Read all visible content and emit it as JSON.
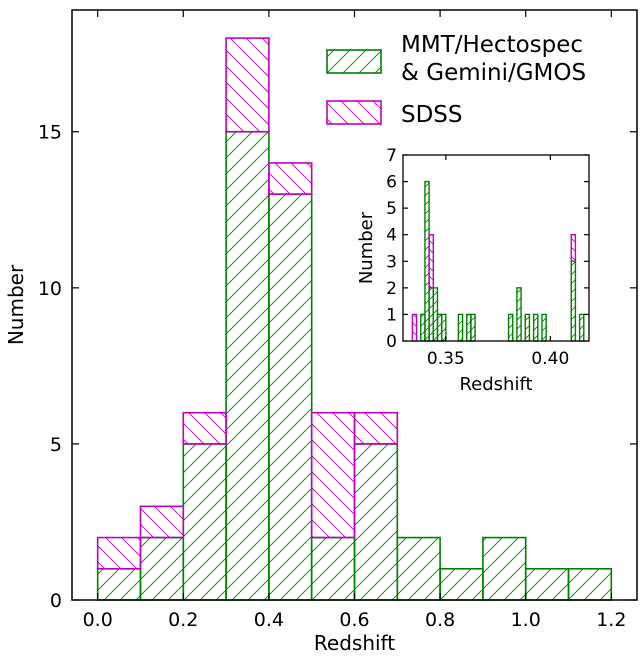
{
  "chart_data": [
    {
      "type": "bar",
      "stacked": true,
      "bin_edges": [
        0.0,
        0.1,
        0.2,
        0.3,
        0.4,
        0.5,
        0.6,
        0.7,
        0.8,
        0.9,
        1.0,
        1.1,
        1.2
      ],
      "series": [
        {
          "name": "MMT/Hectospec\n& Gemini/GMOS",
          "label_lines": [
            "MMT/Hectospec",
            "& Gemini/GMOS"
          ],
          "color": "#008000",
          "hatch": "forward-diagonal",
          "values": [
            1,
            2,
            5,
            15,
            13,
            2,
            5,
            2,
            1,
            2,
            1,
            1
          ]
        },
        {
          "name": "SDSS",
          "label_lines": [
            "SDSS"
          ],
          "color": "#bf00bf",
          "hatch": "back-diagonal",
          "values": [
            1,
            1,
            1,
            3,
            1,
            4,
            1,
            0,
            0,
            0,
            0,
            0
          ]
        }
      ],
      "xlabel": "Redshift",
      "ylabel": "Number",
      "xlim": [
        -0.06,
        1.26
      ],
      "ylim": [
        0,
        18.9
      ],
      "xticks": [
        0.0,
        0.2,
        0.4,
        0.6,
        0.8,
        1.0,
        1.2
      ],
      "xtick_labels": [
        "0.0",
        "0.2",
        "0.4",
        "0.6",
        "0.8",
        "1.0",
        "1.2"
      ],
      "yticks": [
        0,
        5,
        10,
        15
      ],
      "ytick_labels": [
        "0",
        "5",
        "10",
        "15"
      ],
      "legend": "upper-right",
      "grid": false
    },
    {
      "type": "bar",
      "stacked": true,
      "inset": true,
      "bin_edges": [
        0.332,
        0.334,
        0.336,
        0.338,
        0.34,
        0.342,
        0.344,
        0.346,
        0.348,
        0.35,
        0.352,
        0.354,
        0.356,
        0.358,
        0.36,
        0.362,
        0.364,
        0.366,
        0.368,
        0.37,
        0.372,
        0.374,
        0.376,
        0.378,
        0.38,
        0.382,
        0.384,
        0.386,
        0.388,
        0.39,
        0.392,
        0.394,
        0.396,
        0.398,
        0.4,
        0.402,
        0.404,
        0.406,
        0.408,
        0.41,
        0.412,
        0.414,
        0.416
      ],
      "series": [
        {
          "name": "MMT/Hectospec & Gemini/GMOS",
          "color": "#008000",
          "values": [
            0,
            0,
            0,
            1,
            6,
            2,
            2,
            1,
            1,
            0,
            0,
            0,
            1,
            0,
            1,
            1,
            0,
            0,
            0,
            0,
            0,
            0,
            0,
            0,
            1,
            0,
            2,
            0,
            1,
            0,
            1,
            0,
            1,
            0,
            0,
            0,
            0,
            0,
            0,
            3,
            0,
            1
          ]
        },
        {
          "name": "SDSS",
          "color": "#bf00bf",
          "values": [
            0,
            1,
            0,
            0,
            0,
            2,
            0,
            0,
            0,
            0,
            0,
            0,
            0,
            0,
            0,
            0,
            0,
            0,
            0,
            0,
            0,
            0,
            0,
            0,
            0,
            0,
            0,
            0,
            0,
            0,
            0,
            0,
            0,
            0,
            0,
            0,
            0,
            0,
            0,
            1,
            0,
            0
          ]
        }
      ],
      "xlabel": "Redshift",
      "ylabel": "Number",
      "xlim": [
        0.3295,
        0.4185
      ],
      "ylim": [
        0,
        7
      ],
      "xticks": [
        0.35,
        0.4
      ],
      "xtick_labels": [
        "0.35",
        "0.40"
      ],
      "yticks": [
        0,
        1,
        2,
        3,
        4,
        5,
        6,
        7
      ],
      "ytick_labels": [
        "0",
        "1",
        "2",
        "3",
        "4",
        "5",
        "6",
        "7"
      ]
    }
  ]
}
